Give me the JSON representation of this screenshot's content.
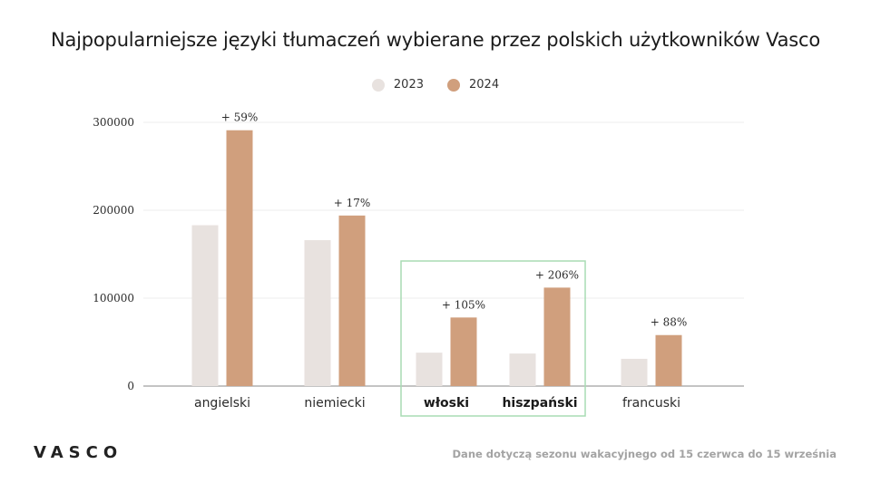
{
  "title": "Najpopularniejsze języki tłumaczeń wybierane przez polskich użytkowników Vasco",
  "footnote": "Dane dotyczą sezonu wakacyjnego od 15 czerwca do 15 września",
  "logo": "VASCO",
  "colors": {
    "series_2023": "#e8e2df",
    "series_2024": "#d09f7d",
    "highlight_box": "#a8dcb4",
    "axis": "#888888",
    "grid": "#ececec"
  },
  "chart_data": {
    "type": "bar",
    "categories": [
      "angielski",
      "niemiecki",
      "włoski",
      "hiszpański",
      "francuski"
    ],
    "bold_categories": [
      "włoski",
      "hiszpański"
    ],
    "highlighted_categories": [
      "włoski",
      "hiszpański"
    ],
    "series": [
      {
        "name": "2023",
        "values": [
          183000,
          166000,
          38000,
          37000,
          31000
        ]
      },
      {
        "name": "2024",
        "values": [
          291000,
          194000,
          78000,
          112000,
          58000
        ]
      }
    ],
    "data_labels": [
      "+ 59%",
      "+ 17%",
      "+ 105%",
      "+ 206%",
      "+ 88%"
    ],
    "yticks": [
      0,
      100000,
      200000,
      300000
    ],
    "ytick_labels": [
      "0",
      "100000",
      "200000",
      "300000"
    ],
    "ylim": [
      0,
      300000
    ],
    "xlabel": "",
    "ylabel": "",
    "legend_position": "top-center",
    "grid": true
  }
}
